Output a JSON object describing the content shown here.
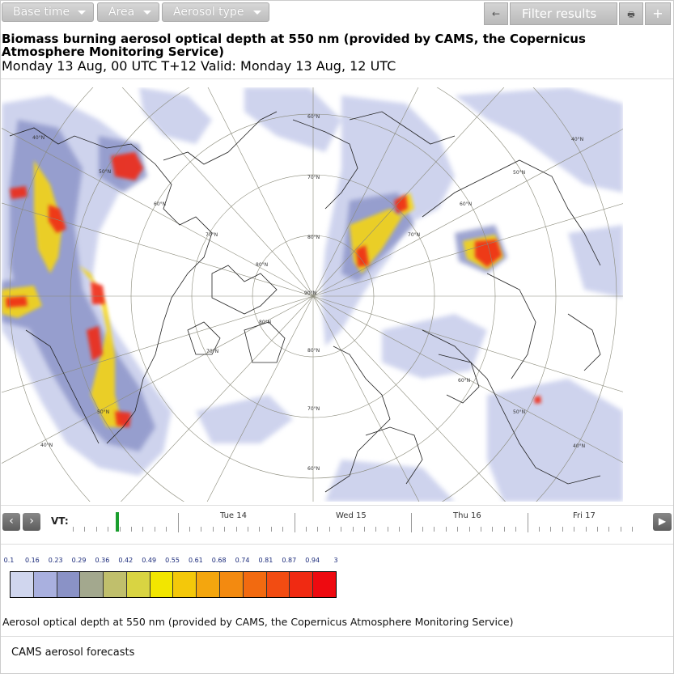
{
  "toolbar": {
    "base_time": "Base time",
    "area": "Area",
    "aerosol_type": "Aerosol type",
    "back_icon": "←",
    "filter_results": "Filter results",
    "print_icon": "🖶",
    "add_icon": "+"
  },
  "title": "Biomass burning aerosol optical depth at 550 nm (provided by CAMS, the Copernicus Atmosphere Monitoring Service)",
  "subtitle": "Monday 13 Aug, 00 UTC T+12 Valid: Monday 13 Aug, 12 UTC",
  "map_labels": {
    "lat_40_a": "40°N",
    "lat_50_a": "50°N",
    "lat_60_a": "60°N",
    "lat_70_a": "70°N",
    "lat_80_a": "80°N",
    "lat_90": "90°N",
    "lat_80_b": "80°N",
    "lat_70_b": "70°N",
    "lat_60_b": "60°N",
    "lat_60_top": "60°N",
    "lat_70_top": "70°N",
    "lat_80_top": "80°N",
    "lat_40_b": "40°N",
    "lat_50_b": "50°N",
    "lat_60_c": "60°N",
    "lat_70_c": "70°N",
    "lat_60_d": "60°N",
    "lat_50_c": "50°N",
    "lat_40_c": "40°N",
    "lat_50_d": "50°N",
    "lat_40_d": "40°N",
    "lat_80_c": "80°N",
    "lat_70_d": "70°N"
  },
  "timeline": {
    "vt_label": "VT:",
    "prev_icon": "‹",
    "next_icon": "›",
    "play_icon": "▶",
    "days": [
      "Tue 14",
      "Wed 15",
      "Thu 16",
      "Fri 17"
    ]
  },
  "legend": {
    "values": [
      "0.1",
      "0.16",
      "0.23",
      "0.29",
      "0.36",
      "0.42",
      "0.49",
      "0.55",
      "0.61",
      "0.68",
      "0.74",
      "0.81",
      "0.87",
      "0.94",
      "3"
    ],
    "colors": [
      "#d0d6ee",
      "#a9b0df",
      "#8a92c6",
      "#a3a88e",
      "#c0bf6c",
      "#d9d442",
      "#f2e600",
      "#f4c80a",
      "#f4a60e",
      "#f38a10",
      "#f26a10",
      "#f24c12",
      "#f02a12",
      "#ee0a10"
    ]
  },
  "caption": "Aerosol optical depth at 550 nm (provided by CAMS, the Copernicus Atmosphere Monitoring Service)",
  "footer": "CAMS aerosol forecasts"
}
